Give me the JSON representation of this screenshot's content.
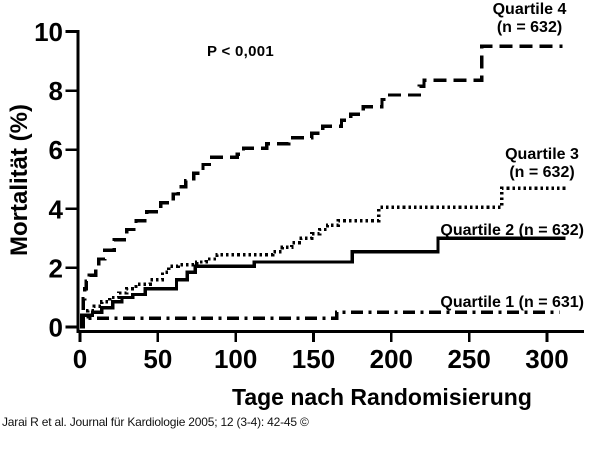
{
  "annotations": {
    "p_value": "P < 0,001",
    "ylabel": "Mortalität (%)",
    "xlabel": "Tage nach Randomisierung",
    "citation": "Jarai R et al. Journal für Kardiologie 2005; 12 (3-4): 42-45 ©"
  },
  "legend": {
    "q4": {
      "name": "Quartile 4",
      "n": "(n = 632)"
    },
    "q3": {
      "name": "Quartile 3",
      "n": "(n = 632)"
    },
    "q2": {
      "label": "Quartile 2 (n = 632)"
    },
    "q1": {
      "label": "Quartile 1 (n = 631)"
    }
  },
  "colors": {
    "line": "#000000",
    "background": "#ffffff",
    "citation_text": "#111111"
  },
  "chart_data": {
    "type": "line",
    "subtype": "kaplan-meier-step",
    "title": "",
    "xlabel": "Tage nach Randomisierung",
    "ylabel": "Mortalität (%)",
    "xlim": [
      0,
      300
    ],
    "ylim": [
      0,
      10
    ],
    "x_ticks": [
      0,
      50,
      100,
      150,
      200,
      250,
      300
    ],
    "y_ticks": [
      0,
      2,
      4,
      6,
      8,
      10
    ],
    "grid": false,
    "legend_position": "inline-right",
    "p_value": "P < 0,001",
    "series": [
      {
        "name": "Quartile 4 (n = 632)",
        "style": "dashed",
        "points": [
          [
            0,
            0
          ],
          [
            1,
            0.5
          ],
          [
            2,
            0.95
          ],
          [
            3,
            1.3
          ],
          [
            4,
            1.55
          ],
          [
            6,
            1.75
          ],
          [
            10,
            2.0
          ],
          [
            12,
            2.3
          ],
          [
            16,
            2.6
          ],
          [
            22,
            2.95
          ],
          [
            30,
            3.3
          ],
          [
            36,
            3.6
          ],
          [
            43,
            3.9
          ],
          [
            52,
            4.2
          ],
          [
            60,
            4.5
          ],
          [
            63,
            4.75
          ],
          [
            68,
            4.95
          ],
          [
            73,
            5.2
          ],
          [
            79,
            5.5
          ],
          [
            83,
            5.75
          ],
          [
            101,
            5.85
          ],
          [
            105,
            6.05
          ],
          [
            120,
            6.2
          ],
          [
            134,
            6.4
          ],
          [
            149,
            6.55
          ],
          [
            156,
            6.8
          ],
          [
            168,
            7.0
          ],
          [
            174,
            7.2
          ],
          [
            182,
            7.45
          ],
          [
            194,
            7.7
          ],
          [
            197,
            7.85
          ],
          [
            218,
            8.15
          ],
          [
            221,
            8.35
          ],
          [
            258,
            9.5
          ],
          [
            310,
            9.5
          ]
        ]
      },
      {
        "name": "Quartile 3 (n = 632)",
        "style": "dotted",
        "points": [
          [
            0,
            0
          ],
          [
            2,
            0.35
          ],
          [
            5,
            0.55
          ],
          [
            9,
            0.7
          ],
          [
            14,
            0.85
          ],
          [
            19,
            1.0
          ],
          [
            25,
            1.15
          ],
          [
            30,
            1.3
          ],
          [
            36,
            1.45
          ],
          [
            45,
            1.6
          ],
          [
            53,
            1.85
          ],
          [
            57,
            2.05
          ],
          [
            63,
            2.1
          ],
          [
            75,
            2.2
          ],
          [
            81,
            2.3
          ],
          [
            88,
            2.45
          ],
          [
            124,
            2.55
          ],
          [
            130,
            2.7
          ],
          [
            136,
            2.85
          ],
          [
            142,
            3.0
          ],
          [
            149,
            3.15
          ],
          [
            154,
            3.3
          ],
          [
            159,
            3.45
          ],
          [
            166,
            3.6
          ],
          [
            192,
            4.05
          ],
          [
            271,
            4.7
          ],
          [
            312,
            4.7
          ]
        ]
      },
      {
        "name": "Quartile 2 (n = 632)",
        "style": "solid",
        "points": [
          [
            0,
            0
          ],
          [
            1,
            0.4
          ],
          [
            8,
            0.5
          ],
          [
            14,
            0.65
          ],
          [
            21,
            0.85
          ],
          [
            27,
            1.0
          ],
          [
            34,
            1.1
          ],
          [
            42,
            1.3
          ],
          [
            62,
            1.6
          ],
          [
            69,
            1.85
          ],
          [
            74,
            2.05
          ],
          [
            112,
            2.2
          ],
          [
            175,
            2.55
          ],
          [
            230,
            3.0
          ],
          [
            312,
            3.0
          ]
        ]
      },
      {
        "name": "Quartile 1 (n = 631)",
        "style": "dashdot",
        "points": [
          [
            0,
            0
          ],
          [
            2,
            0.3
          ],
          [
            165,
            0.5
          ],
          [
            308,
            0.5
          ]
        ]
      }
    ]
  }
}
